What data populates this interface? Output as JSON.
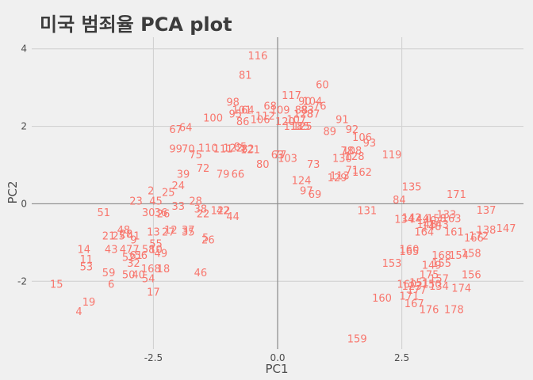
{
  "chart_data": {
    "type": "scatter",
    "title": "미국 범죄율 PCA plot",
    "xlabel": "PC1",
    "ylabel": "PC2",
    "xlim": [
      -4.95,
      4.95
    ],
    "ylim": [
      -3.75,
      4.3
    ],
    "x_ticks": [
      -2.5,
      0.0,
      2.5
    ],
    "x_tick_labels": [
      "-2.5",
      "0.0",
      "2.5"
    ],
    "y_ticks": [
      -2,
      0,
      2,
      4
    ],
    "y_tick_labels": [
      "-2",
      "0",
      "2",
      "4"
    ],
    "point_color": "#f8766d",
    "background_color": "#f0f0f0",
    "grid": true,
    "ref_lines": {
      "x": 0,
      "y": 0
    },
    "points": [
      {
        "label": "116",
        "x": -0.4,
        "y": 3.8
      },
      {
        "label": "81",
        "x": -0.65,
        "y": 3.3
      },
      {
        "label": "60",
        "x": 0.9,
        "y": 3.05
      },
      {
        "label": "117",
        "x": 0.28,
        "y": 2.78
      },
      {
        "label": "90",
        "x": 0.55,
        "y": 2.62
      },
      {
        "label": "104",
        "x": 0.7,
        "y": 2.62
      },
      {
        "label": "98",
        "x": -0.9,
        "y": 2.6
      },
      {
        "label": "68",
        "x": -0.15,
        "y": 2.5
      },
      {
        "label": "76",
        "x": 0.85,
        "y": 2.5
      },
      {
        "label": "101",
        "x": -0.72,
        "y": 2.4
      },
      {
        "label": "64",
        "x": -0.6,
        "y": 2.4
      },
      {
        "label": "109",
        "x": 0.05,
        "y": 2.4
      },
      {
        "label": "88",
        "x": 0.48,
        "y": 2.4
      },
      {
        "label": "83",
        "x": 0.6,
        "y": 2.4
      },
      {
        "label": "95",
        "x": -0.85,
        "y": 2.3
      },
      {
        "label": "112",
        "x": -0.25,
        "y": 2.25
      },
      {
        "label": "128",
        "x": 0.52,
        "y": 2.3
      },
      {
        "label": "87",
        "x": 0.72,
        "y": 2.3
      },
      {
        "label": "100",
        "x": -1.3,
        "y": 2.2
      },
      {
        "label": "86",
        "x": -0.7,
        "y": 2.1
      },
      {
        "label": "106",
        "x": -0.35,
        "y": 2.15
      },
      {
        "label": "120",
        "x": 0.15,
        "y": 2.1
      },
      {
        "label": "107",
        "x": 0.38,
        "y": 2.15
      },
      {
        "label": "91",
        "x": 1.3,
        "y": 2.15
      },
      {
        "label": "118",
        "x": 0.32,
        "y": 1.98
      },
      {
        "label": "125",
        "x": 0.5,
        "y": 1.98
      },
      {
        "label": "115",
        "x": 0.45,
        "y": 1.98
      },
      {
        "label": "67",
        "x": -2.05,
        "y": 1.9
      },
      {
        "label": "64",
        "x": -1.85,
        "y": 1.95
      },
      {
        "label": "89",
        "x": 1.05,
        "y": 1.85
      },
      {
        "label": "92",
        "x": 1.5,
        "y": 1.9
      },
      {
        "label": "106",
        "x": 1.7,
        "y": 1.7
      },
      {
        "label": "93",
        "x": 1.85,
        "y": 1.55
      },
      {
        "label": "99",
        "x": -2.05,
        "y": 1.4
      },
      {
        "label": "70",
        "x": -1.8,
        "y": 1.4
      },
      {
        "label": "110",
        "x": -1.4,
        "y": 1.42
      },
      {
        "label": "111",
        "x": -1.1,
        "y": 1.4
      },
      {
        "label": "122",
        "x": -0.9,
        "y": 1.42
      },
      {
        "label": "85",
        "x": -0.75,
        "y": 1.45
      },
      {
        "label": "82",
        "x": -0.6,
        "y": 1.4
      },
      {
        "label": "121",
        "x": -0.55,
        "y": 1.38
      },
      {
        "label": "75",
        "x": -1.65,
        "y": 1.25
      },
      {
        "label": "78",
        "x": 1.4,
        "y": 1.35
      },
      {
        "label": "108",
        "x": 1.5,
        "y": 1.35
      },
      {
        "label": "119",
        "x": 2.3,
        "y": 1.25
      },
      {
        "label": "63",
        "x": 0.0,
        "y": 1.25
      },
      {
        "label": "77",
        "x": 0.05,
        "y": 1.25
      },
      {
        "label": "103",
        "x": 0.2,
        "y": 1.15
      },
      {
        "label": "128",
        "x": 1.55,
        "y": 1.2
      },
      {
        "label": "80",
        "x": -0.3,
        "y": 1.0
      },
      {
        "label": "73",
        "x": 0.72,
        "y": 1.0
      },
      {
        "label": "130",
        "x": 1.3,
        "y": 1.15
      },
      {
        "label": "72",
        "x": -1.5,
        "y": 0.9
      },
      {
        "label": "71",
        "x": 1.5,
        "y": 0.85
      },
      {
        "label": "162",
        "x": 1.7,
        "y": 0.8
      },
      {
        "label": "79",
        "x": -1.1,
        "y": 0.75
      },
      {
        "label": "66",
        "x": -0.8,
        "y": 0.75
      },
      {
        "label": "129",
        "x": 1.2,
        "y": 0.65
      },
      {
        "label": "113",
        "x": 1.25,
        "y": 0.7
      },
      {
        "label": "39",
        "x": -1.9,
        "y": 0.75
      },
      {
        "label": "124",
        "x": 0.48,
        "y": 0.58
      },
      {
        "label": "24",
        "x": -2.0,
        "y": 0.45
      },
      {
        "label": "2",
        "x": -2.55,
        "y": 0.32
      },
      {
        "label": "25",
        "x": -2.2,
        "y": 0.28
      },
      {
        "label": "97",
        "x": 0.58,
        "y": 0.32
      },
      {
        "label": "69",
        "x": 0.75,
        "y": 0.22
      },
      {
        "label": "135",
        "x": 2.7,
        "y": 0.42
      },
      {
        "label": "171",
        "x": 3.6,
        "y": 0.22
      },
      {
        "label": "23",
        "x": -2.85,
        "y": 0.05
      },
      {
        "label": "45",
        "x": -2.45,
        "y": 0.05
      },
      {
        "label": "28",
        "x": -1.65,
        "y": 0.05
      },
      {
        "label": "33",
        "x": -2.0,
        "y": -0.08
      },
      {
        "label": "84",
        "x": 2.45,
        "y": 0.08
      },
      {
        "label": "51",
        "x": -3.5,
        "y": -0.25
      },
      {
        "label": "30",
        "x": -2.6,
        "y": -0.25
      },
      {
        "label": "36",
        "x": -2.35,
        "y": -0.25
      },
      {
        "label": "26",
        "x": -2.3,
        "y": -0.28
      },
      {
        "label": "38",
        "x": -1.55,
        "y": -0.15
      },
      {
        "label": "22",
        "x": -1.5,
        "y": -0.28
      },
      {
        "label": "122",
        "x": -1.15,
        "y": -0.2
      },
      {
        "label": "42",
        "x": -1.1,
        "y": -0.2
      },
      {
        "label": "44",
        "x": -0.9,
        "y": -0.35
      },
      {
        "label": "131",
        "x": 1.8,
        "y": -0.2
      },
      {
        "label": "137",
        "x": 4.2,
        "y": -0.18
      },
      {
        "label": "134",
        "x": 2.55,
        "y": -0.42
      },
      {
        "label": "142",
        "x": 2.7,
        "y": -0.38
      },
      {
        "label": "144",
        "x": 2.85,
        "y": -0.4
      },
      {
        "label": "133",
        "x": 3.4,
        "y": -0.3
      },
      {
        "label": "163",
        "x": 3.5,
        "y": -0.4
      },
      {
        "label": "158",
        "x": 3.2,
        "y": -0.4
      },
      {
        "label": "140",
        "x": 3.0,
        "y": -0.45
      },
      {
        "label": "143",
        "x": 3.25,
        "y": -0.55
      },
      {
        "label": "146",
        "x": 3.0,
        "y": -0.55
      },
      {
        "label": "148",
        "x": 3.1,
        "y": -0.6
      },
      {
        "label": "147",
        "x": 4.6,
        "y": -0.65
      },
      {
        "label": "138",
        "x": 4.2,
        "y": -0.7
      },
      {
        "label": "161",
        "x": 3.55,
        "y": -0.75
      },
      {
        "label": "166",
        "x": 3.95,
        "y": -0.9
      },
      {
        "label": "172",
        "x": 4.05,
        "y": -0.85
      },
      {
        "label": "164",
        "x": 2.95,
        "y": -0.75
      },
      {
        "label": "48",
        "x": -3.1,
        "y": -0.7
      },
      {
        "label": "21",
        "x": -3.4,
        "y": -0.85
      },
      {
        "label": "25",
        "x": -3.2,
        "y": -0.85
      },
      {
        "label": "28",
        "x": -3.05,
        "y": -0.8
      },
      {
        "label": "41",
        "x": -2.9,
        "y": -0.85
      },
      {
        "label": "13",
        "x": -2.5,
        "y": -0.75
      },
      {
        "label": "12",
        "x": -2.15,
        "y": -0.7
      },
      {
        "label": "27",
        "x": -2.2,
        "y": -0.75
      },
      {
        "label": "37",
        "x": -1.8,
        "y": -0.7
      },
      {
        "label": "35",
        "x": -1.8,
        "y": -0.75
      },
      {
        "label": "5",
        "x": -1.45,
        "y": -0.9
      },
      {
        "label": "26",
        "x": -1.4,
        "y": -0.95
      },
      {
        "label": "9",
        "x": -2.9,
        "y": -0.95
      },
      {
        "label": "55",
        "x": -2.45,
        "y": -1.05
      },
      {
        "label": "14",
        "x": -3.9,
        "y": -1.2
      },
      {
        "label": "43",
        "x": -3.35,
        "y": -1.2
      },
      {
        "label": "47",
        "x": -3.05,
        "y": -1.2
      },
      {
        "label": "7",
        "x": -2.85,
        "y": -1.2
      },
      {
        "label": "58",
        "x": -2.6,
        "y": -1.2
      },
      {
        "label": "10",
        "x": -2.45,
        "y": -1.2
      },
      {
        "label": "49",
        "x": -2.35,
        "y": -1.3
      },
      {
        "label": "11",
        "x": -3.85,
        "y": -1.45
      },
      {
        "label": "52",
        "x": -3.0,
        "y": -1.4
      },
      {
        "label": "32",
        "x": -2.9,
        "y": -1.55
      },
      {
        "label": "56",
        "x": -2.75,
        "y": -1.35
      },
      {
        "label": "61",
        "x": -2.85,
        "y": -1.35
      },
      {
        "label": "160",
        "x": 2.65,
        "y": -1.2
      },
      {
        "label": "165",
        "x": 2.65,
        "y": -1.25
      },
      {
        "label": "168",
        "x": 3.3,
        "y": -1.35
      },
      {
        "label": "154",
        "x": 3.65,
        "y": -1.35
      },
      {
        "label": "158",
        "x": 3.9,
        "y": -1.3
      },
      {
        "label": "153",
        "x": 2.3,
        "y": -1.55
      },
      {
        "label": "149",
        "x": 3.1,
        "y": -1.6
      },
      {
        "label": "155",
        "x": 3.3,
        "y": -1.55
      },
      {
        "label": "53",
        "x": -3.85,
        "y": -1.65
      },
      {
        "label": "59",
        "x": -3.4,
        "y": -1.8
      },
      {
        "label": "50",
        "x": -3.0,
        "y": -1.85
      },
      {
        "label": "40",
        "x": -2.8,
        "y": -1.85
      },
      {
        "label": "168",
        "x": -2.55,
        "y": -1.7
      },
      {
        "label": "18",
        "x": -2.3,
        "y": -1.7
      },
      {
        "label": "54",
        "x": -2.6,
        "y": -1.95
      },
      {
        "label": "46",
        "x": -1.55,
        "y": -1.8
      },
      {
        "label": "156",
        "x": 3.9,
        "y": -1.85
      },
      {
        "label": "175",
        "x": 3.05,
        "y": -1.85
      },
      {
        "label": "157",
        "x": 3.25,
        "y": -1.95
      },
      {
        "label": "160",
        "x": 2.6,
        "y": -2.1
      },
      {
        "label": "151",
        "x": 2.85,
        "y": -2.05
      },
      {
        "label": "123",
        "x": 2.7,
        "y": -2.15
      },
      {
        "label": "150",
        "x": 3.1,
        "y": -2.1
      },
      {
        "label": "134",
        "x": 3.25,
        "y": -2.15
      },
      {
        "label": "174",
        "x": 3.7,
        "y": -2.2
      },
      {
        "label": "177",
        "x": 2.8,
        "y": -2.25
      },
      {
        "label": "15",
        "x": -4.45,
        "y": -2.1
      },
      {
        "label": "6",
        "x": -3.35,
        "y": -2.1
      },
      {
        "label": "17",
        "x": -2.5,
        "y": -2.3
      },
      {
        "label": "160",
        "x": 2.1,
        "y": -2.45
      },
      {
        "label": "171",
        "x": 2.65,
        "y": -2.4
      },
      {
        "label": "167",
        "x": 2.75,
        "y": -2.6
      },
      {
        "label": "176",
        "x": 3.05,
        "y": -2.75
      },
      {
        "label": "178",
        "x": 3.55,
        "y": -2.75
      },
      {
        "label": "19",
        "x": -3.8,
        "y": -2.55
      },
      {
        "label": "4",
        "x": -4.0,
        "y": -2.8
      },
      {
        "label": "159",
        "x": 1.6,
        "y": -3.5
      }
    ]
  }
}
